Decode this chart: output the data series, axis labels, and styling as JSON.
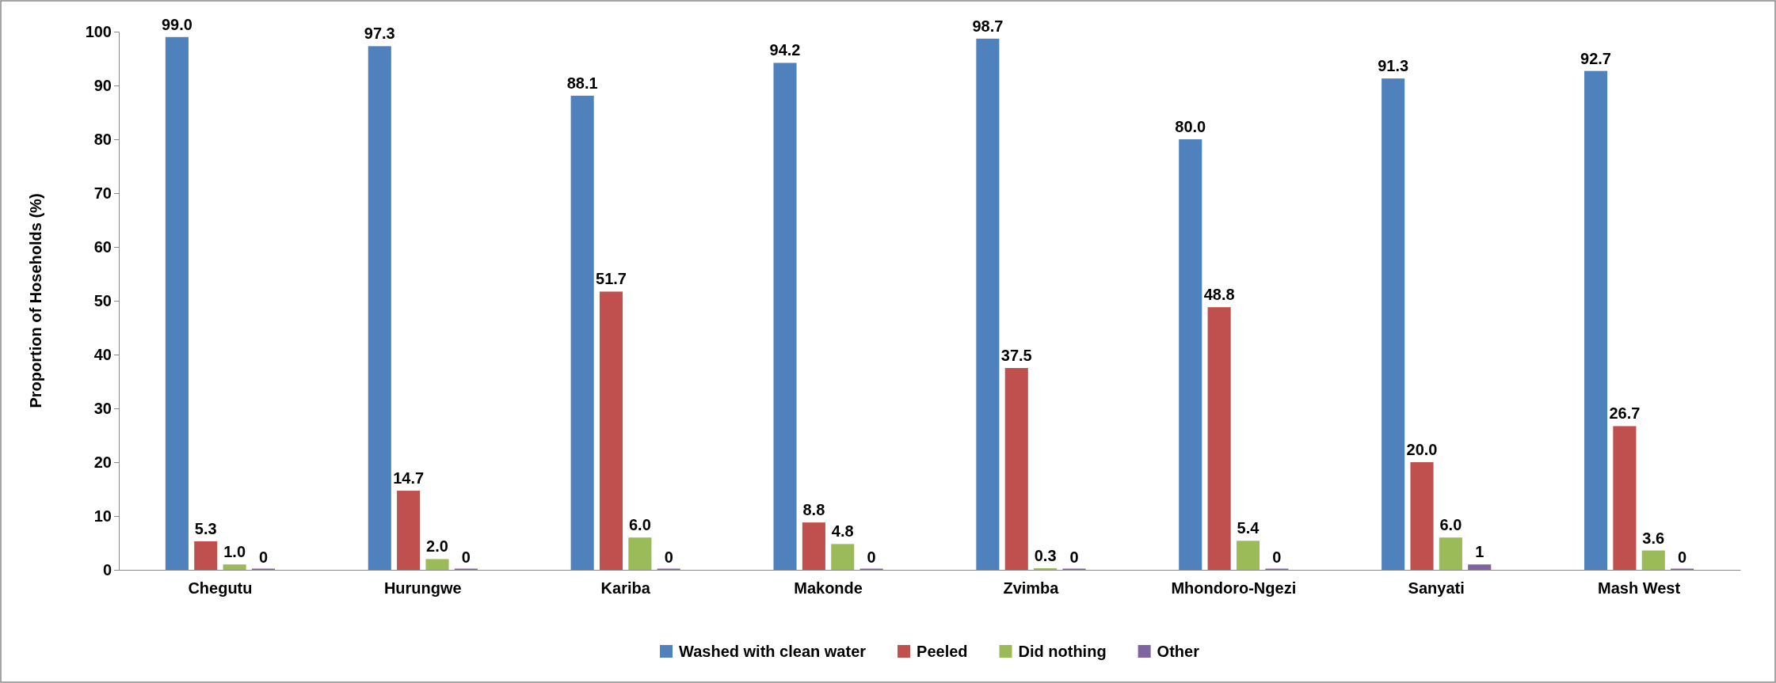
{
  "chart_data": {
    "type": "bar",
    "ylabel": "Proportion of Hoseholds (%)",
    "categories": [
      "Chegutu",
      "Hurungwe",
      "Kariba",
      "Makonde",
      "Zvimba",
      "Mhondoro-Ngezi",
      "Sanyati",
      "Mash West"
    ],
    "series": [
      {
        "name": "Washed with clean water",
        "color": "#4f81bd",
        "values": [
          99.0,
          97.3,
          88.1,
          94.2,
          98.7,
          80.0,
          91.3,
          92.7
        ],
        "value_labels": [
          "99.0",
          "97.3",
          "88.1",
          "94.2",
          "98.7",
          "80.0",
          "91.3",
          "92.7"
        ]
      },
      {
        "name": "Peeled",
        "color": "#c0504d",
        "values": [
          5.3,
          14.7,
          51.7,
          8.8,
          37.5,
          48.8,
          20.0,
          26.7
        ],
        "value_labels": [
          "5.3",
          "14.7",
          "51.7",
          "8.8",
          "37.5",
          "48.8",
          "20.0",
          "26.7"
        ]
      },
      {
        "name": "Did nothing",
        "color": "#9bbb59",
        "values": [
          1.0,
          2.0,
          6.0,
          4.8,
          0.3,
          5.4,
          6.0,
          3.6
        ],
        "value_labels": [
          "1.0",
          "2.0",
          "6.0",
          "4.8",
          "0.3",
          "5.4",
          "6.0",
          "3.6"
        ]
      },
      {
        "name": "Other",
        "color": "#8064a2",
        "values": [
          0,
          0,
          0,
          0,
          0,
          0,
          1,
          0
        ],
        "value_labels": [
          "0",
          "0",
          "0",
          "0",
          "0",
          "0",
          "1",
          "0"
        ]
      }
    ],
    "ylim": [
      0,
      100
    ],
    "yticks": [
      0,
      10,
      20,
      30,
      40,
      50,
      60,
      70,
      80,
      90,
      100
    ],
    "grid": false,
    "legend": "bottom"
  }
}
